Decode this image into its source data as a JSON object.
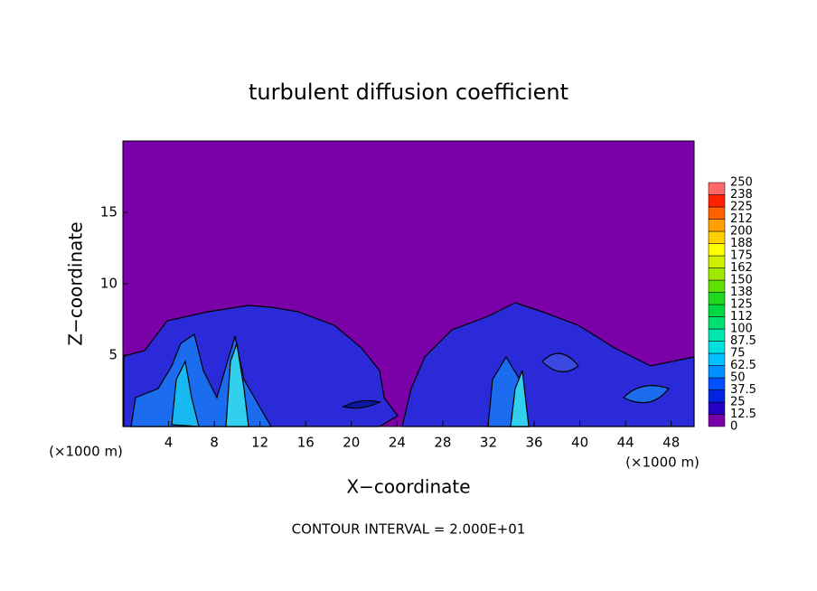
{
  "chart_data": {
    "type": "contour",
    "title": "turbulent diffusion coefficient",
    "xlabel": "X−coordinate",
    "ylabel": "Z−coordinate",
    "x_unit": "(×1000 m)",
    "footer": "CONTOUR INTERVAL = 2.000E+01",
    "xlim": [
      0,
      50
    ],
    "xticks": [
      4,
      8,
      12,
      16,
      20,
      24,
      28,
      32,
      36,
      40,
      44,
      48
    ],
    "ylim": [
      0,
      20
    ],
    "yticks": [
      5,
      10,
      15
    ],
    "background_color": "#7a00a8",
    "colorbar": {
      "levels": [
        0,
        12.5,
        25,
        37.5,
        50,
        62.5,
        75,
        87.5,
        100,
        112,
        125,
        138,
        150,
        162,
        175,
        188,
        200,
        212,
        225,
        238,
        250
      ],
      "colors": [
        "#7a00a8",
        "#2400c4",
        "#0024e0",
        "#0050ff",
        "#0090ff",
        "#00c0ff",
        "#00e0e0",
        "#00e8b0",
        "#00e070",
        "#00d840",
        "#20d820",
        "#60e000",
        "#a0e800",
        "#d0f000",
        "#ffff00",
        "#ffd000",
        "#ffa000",
        "#ff6000",
        "#ff2000",
        "#ff6868"
      ]
    }
  }
}
